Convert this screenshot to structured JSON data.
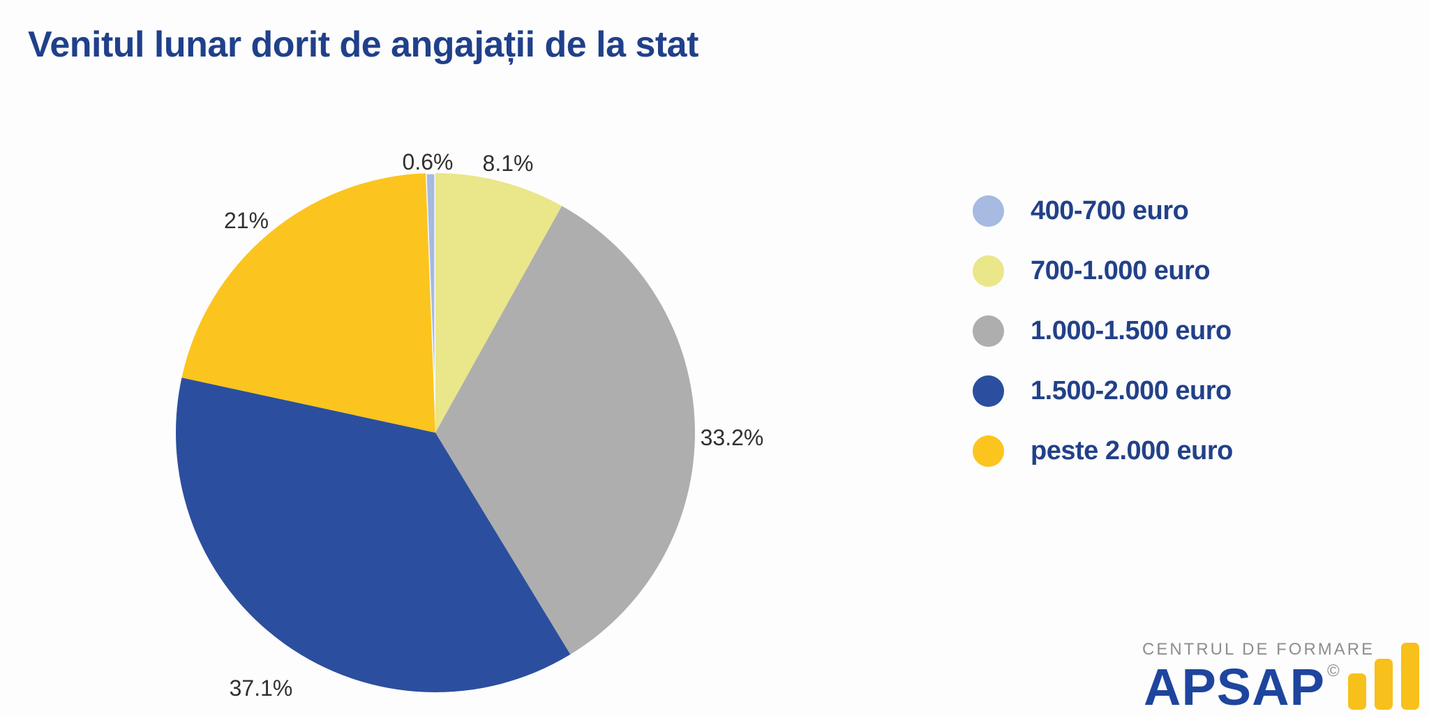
{
  "chart_data": {
    "type": "pie",
    "title": "Venitul lunar dorit de angajații de la stat",
    "categories": [
      "400-700 euro",
      "700-1.000 euro",
      "1.000-1.500 euro",
      "1.500-2.000 euro",
      "peste 2.000 euro"
    ],
    "values": [
      0.6,
      8.1,
      33.2,
      37.1,
      21
    ],
    "value_labels": [
      "0.6%",
      "8.1%",
      "33.2%",
      "37.1%",
      "21%"
    ],
    "colors": [
      "#A6BAE2",
      "#EAE68A",
      "#AEAEAE",
      "#2B4F9E",
      "#FCC41E"
    ],
    "start_angle_deg": -2.16,
    "direction": "clockwise",
    "legend_position": "right",
    "labels_position": "outside"
  },
  "logo": {
    "tagline": "CENTRUL DE FORMARE",
    "brand": "APSAP",
    "copyright": "©",
    "icon": "bar-chart-icon"
  },
  "theme": {
    "background": "#FDFDFD",
    "title-color": "#20408A",
    "legend-text-color": "#224189",
    "pct-label-color": "#303030",
    "brand-blue": "#1E459E",
    "tagline-gray": "#8E8E8E",
    "bar-gold": "#F8C01A"
  }
}
